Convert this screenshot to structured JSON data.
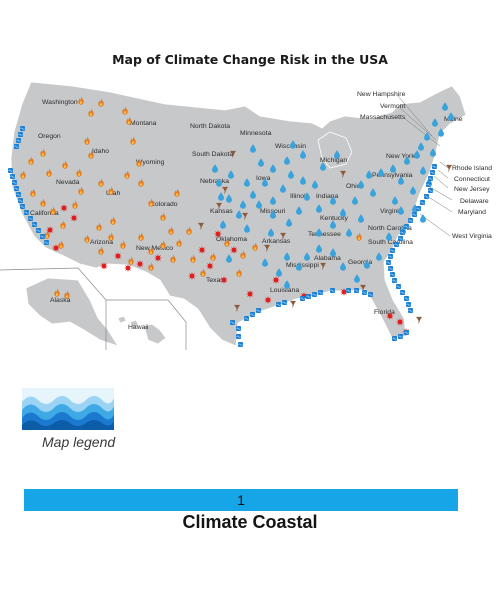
{
  "map": {
    "title": "Map of Climate Change Risk in the USA",
    "colors": {
      "land": "#c7c8ca",
      "border": "#ffffff",
      "water_drop": "#3aa3dc",
      "fire": "#e57a20",
      "heat_burst": "#e11b1b",
      "tornado": "#8a5a3b",
      "coastal_wave": "#1c7fd3"
    },
    "risk_icons": [
      "water-drop-icon",
      "fire-icon",
      "heat-burst-icon",
      "tornado-icon",
      "coastal-wave-icon"
    ],
    "state_labels": [
      "Washington",
      "Montana",
      "North Dakota",
      "Minnesota",
      "Oregon",
      "Idaho",
      "Wyoming",
      "South Dakota",
      "Wisconsin",
      "Michigan",
      "Nevada",
      "Utah",
      "Nebraska",
      "Iowa",
      "California",
      "Colorado",
      "Kansas",
      "Missouri",
      "Illinois",
      "Indiana",
      "Ohio",
      "Pennsylvania",
      "New York",
      "Arizona",
      "New Mexico",
      "Oklahoma",
      "Arkansas",
      "Kentucky",
      "Tennessee",
      "Virginia",
      "North Carolina",
      "South Carolina",
      "Texas",
      "Mississippi",
      "Alabama",
      "Georgia",
      "Louisiana",
      "Florida",
      "Alaska",
      "Hawaii",
      "New Hampshire",
      "Vermont",
      "Massachusetts",
      "Maine",
      "Rhode Island",
      "Connecticut",
      "New Jersey",
      "Delaware",
      "Maryland",
      "West Virginia"
    ]
  },
  "legend": {
    "label": "Map legend",
    "number": "1",
    "caption": "Climate Coastal"
  }
}
